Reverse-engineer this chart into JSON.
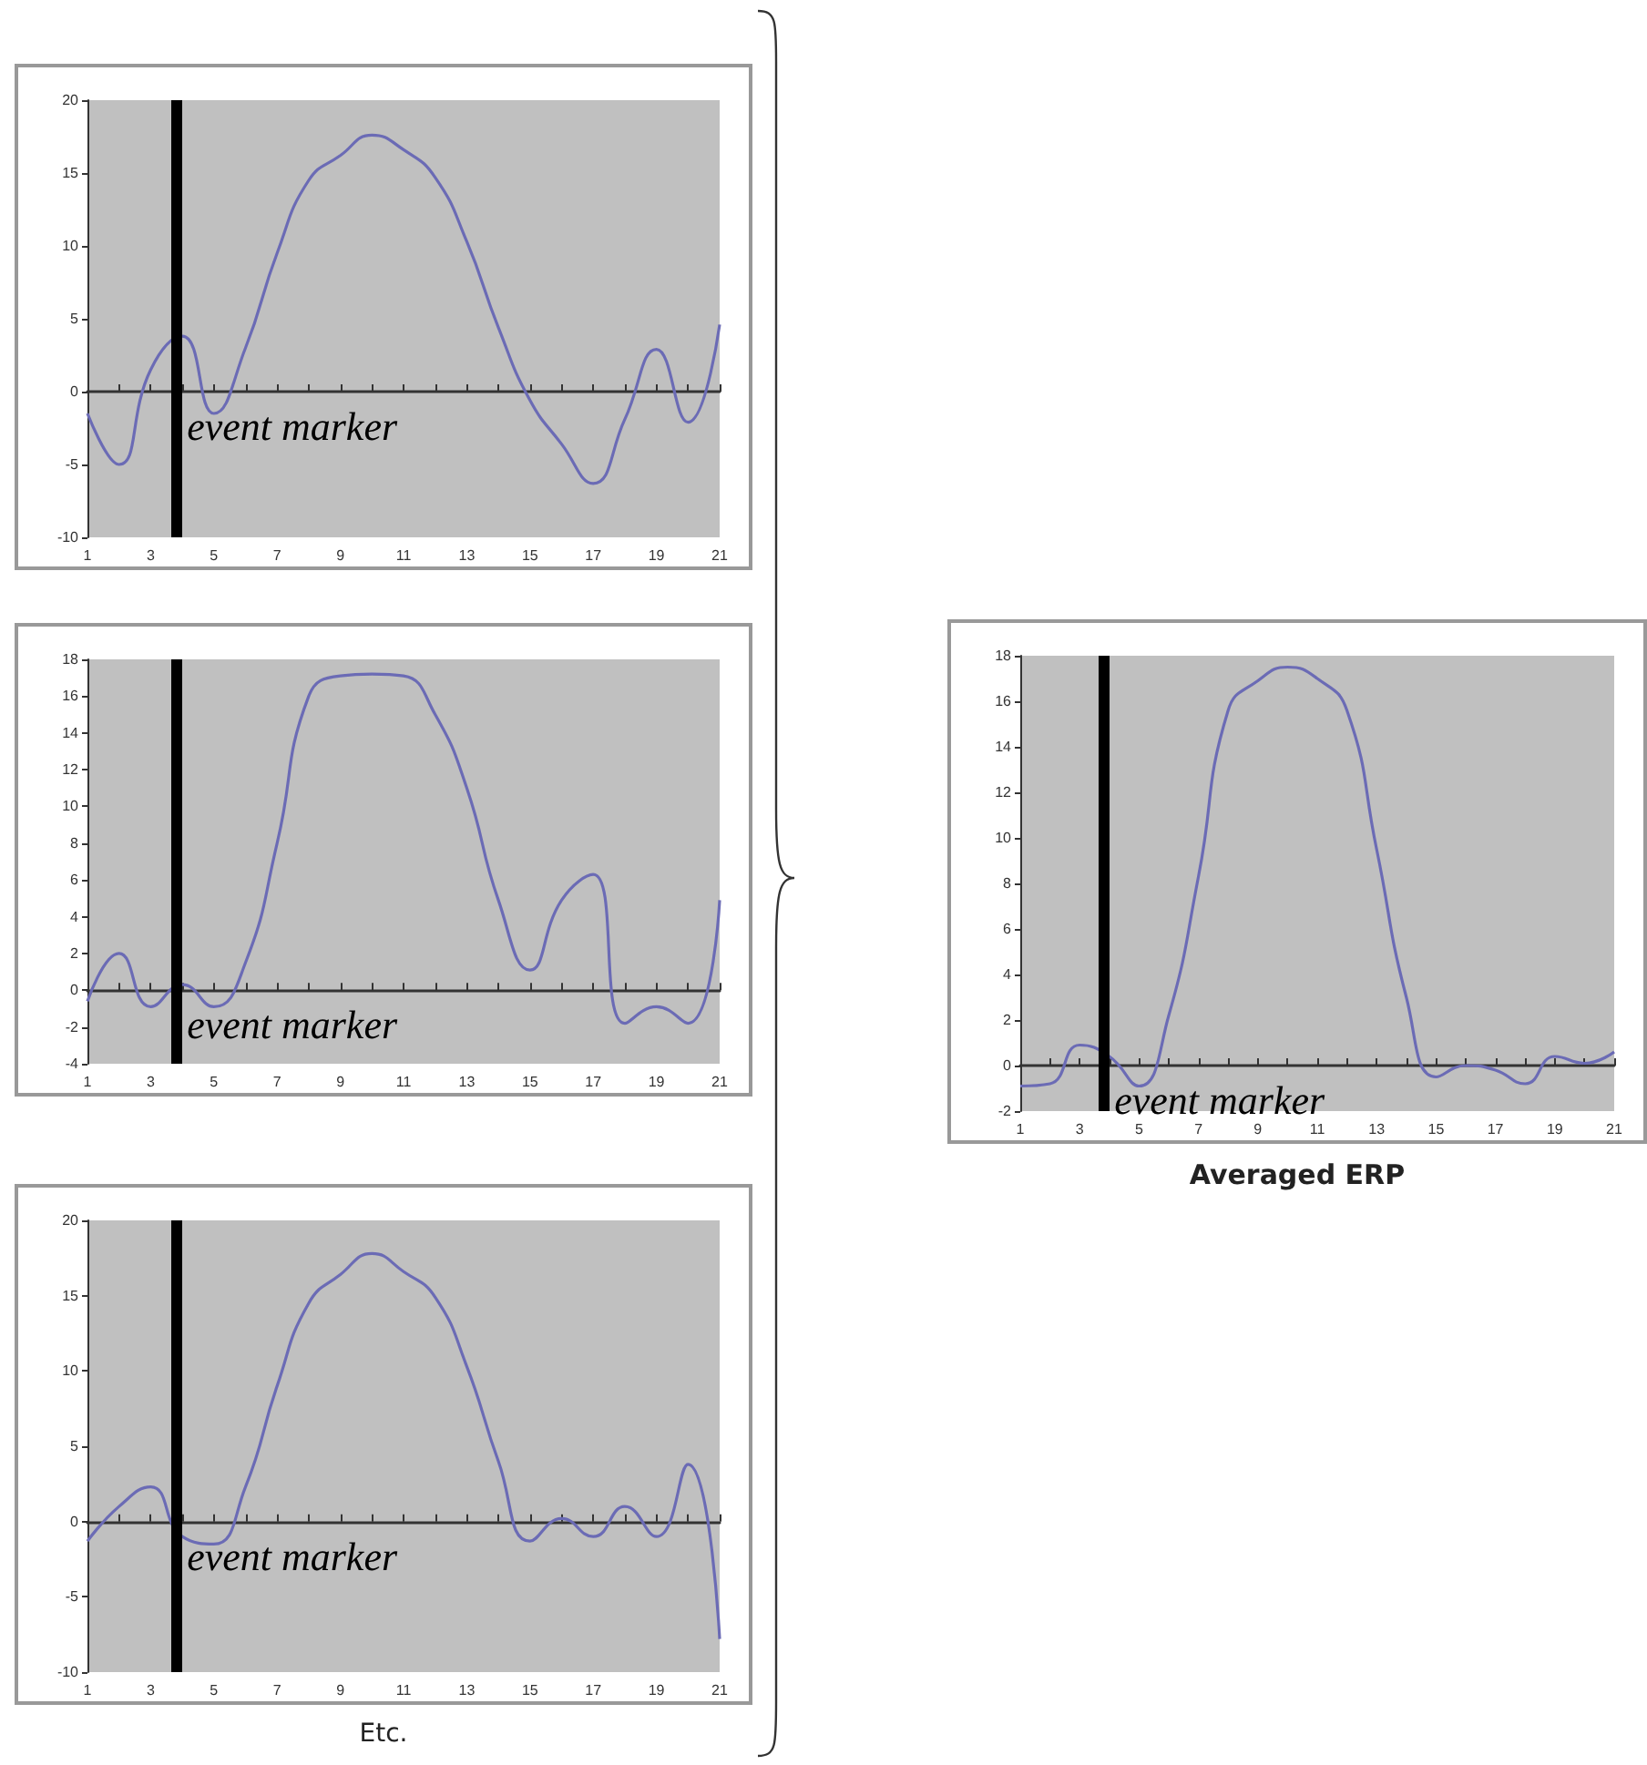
{
  "chart_data": [
    {
      "type": "line",
      "x": [
        1,
        2,
        3,
        4,
        5,
        6,
        7,
        8,
        9,
        10,
        11,
        12,
        13,
        14,
        15,
        16,
        17,
        18,
        19,
        20,
        21
      ],
      "values": [
        -1.5,
        -5,
        1.5,
        3.8,
        -1.5,
        3,
        9.5,
        14.5,
        16.2,
        17.6,
        16.6,
        14.7,
        10.3,
        4.4,
        -0.6,
        -3.6,
        -6.3,
        -1.9,
        2.9,
        -2.1,
        4.6
      ],
      "color": "#6b6bb5",
      "xlim": [
        1,
        21
      ],
      "xticks": [
        1,
        {
          "value": 2,
          "label": null
        },
        3,
        {
          "value": 4,
          "label": null
        },
        5,
        {
          "value": 6,
          "label": null
        },
        7,
        {
          "value": 8,
          "label": null
        },
        9,
        {
          "value": 10,
          "label": null
        },
        11,
        {
          "value": 12,
          "label": null
        },
        13,
        {
          "value": 14,
          "label": null
        },
        15,
        {
          "value": 16,
          "label": null
        },
        17,
        {
          "value": 18,
          "label": null
        },
        19,
        {
          "value": 20,
          "label": null
        },
        21
      ],
      "ylim": [
        -10,
        20
      ],
      "yticks": [
        -10,
        -5,
        0,
        5,
        10,
        15,
        20
      ],
      "ref_lines": [
        {
          "axis": "x",
          "value": 3.8,
          "label": "event marker",
          "color": "#000000"
        }
      ],
      "marker": "none"
    },
    {
      "type": "line",
      "x": [
        1,
        2,
        3,
        4,
        5,
        6,
        7,
        8,
        9,
        10,
        11,
        12,
        13,
        14,
        15,
        16,
        17,
        18,
        19,
        20,
        21
      ],
      "values": [
        -0.6,
        2,
        -0.9,
        0.3,
        -0.9,
        1.5,
        8,
        16,
        17.1,
        17.2,
        17.1,
        15,
        11,
        4.9,
        1.1,
        4.9,
        6.3,
        -1.8,
        -0.9,
        -1.8,
        4.9
      ],
      "color": "#6b6bb5",
      "xlim": [
        1,
        21
      ],
      "xticks": [
        1,
        {
          "value": 2,
          "label": null
        },
        3,
        {
          "value": 4,
          "label": null
        },
        5,
        {
          "value": 6,
          "label": null
        },
        7,
        {
          "value": 8,
          "label": null
        },
        9,
        {
          "value": 10,
          "label": null
        },
        11,
        {
          "value": 12,
          "label": null
        },
        13,
        {
          "value": 14,
          "label": null
        },
        15,
        {
          "value": 16,
          "label": null
        },
        17,
        {
          "value": 18,
          "label": null
        },
        19,
        {
          "value": 20,
          "label": null
        },
        21
      ],
      "ylim": [
        -4,
        18
      ],
      "yticks": [
        -4,
        -2,
        0,
        2,
        4,
        6,
        8,
        10,
        12,
        14,
        16,
        18
      ],
      "ref_lines": [
        {
          "axis": "x",
          "value": 3.8,
          "label": "event marker",
          "color": "#000000"
        }
      ],
      "marker": "none"
    },
    {
      "type": "line",
      "x": [
        1,
        2,
        3,
        4,
        5,
        6,
        7,
        8,
        9,
        10,
        11,
        12,
        13,
        14,
        15,
        16,
        17,
        18,
        19,
        20,
        21
      ],
      "values": [
        -1.3,
        1,
        2.3,
        -1,
        -1.5,
        2.3,
        9,
        14.5,
        16.4,
        17.8,
        16.6,
        14.9,
        10.3,
        4,
        -1.3,
        0.2,
        -1,
        1,
        -1,
        3.8,
        -7.8
      ],
      "color": "#6b6bb5",
      "xlim": [
        1,
        21
      ],
      "xticks": [
        1,
        {
          "value": 2,
          "label": null
        },
        3,
        {
          "value": 4,
          "label": null
        },
        5,
        {
          "value": 6,
          "label": null
        },
        7,
        {
          "value": 8,
          "label": null
        },
        9,
        {
          "value": 10,
          "label": null
        },
        11,
        {
          "value": 12,
          "label": null
        },
        13,
        {
          "value": 14,
          "label": null
        },
        15,
        {
          "value": 16,
          "label": null
        },
        17,
        {
          "value": 18,
          "label": null
        },
        19,
        {
          "value": 20,
          "label": null
        },
        21
      ],
      "ylim": [
        -10,
        20
      ],
      "yticks": [
        -10,
        -5,
        0,
        5,
        10,
        15,
        20
      ],
      "ref_lines": [
        {
          "axis": "x",
          "value": 3.8,
          "label": "event marker",
          "color": "#000000"
        }
      ],
      "marker": "none",
      "annotations": [
        "Etc."
      ]
    },
    {
      "type": "line",
      "title": "Averaged ERP",
      "x": [
        1,
        2,
        3,
        4,
        5,
        6,
        7,
        8,
        9,
        10,
        11,
        12,
        13,
        14,
        15,
        16,
        17,
        18,
        19,
        20,
        21
      ],
      "values": [
        -0.9,
        -0.8,
        0.9,
        0.4,
        -0.9,
        2.2,
        8.3,
        15.6,
        16.9,
        17.5,
        17,
        15.6,
        9.5,
        3,
        -0.5,
        0,
        -0.2,
        -0.8,
        0.4,
        0.1,
        0.6
      ],
      "color": "#6b6bb5",
      "xlim": [
        1,
        21
      ],
      "xticks": [
        1,
        {
          "value": 2,
          "label": null
        },
        3,
        {
          "value": 4,
          "label": null
        },
        5,
        {
          "value": 6,
          "label": null
        },
        7,
        {
          "value": 8,
          "label": null
        },
        9,
        {
          "value": 10,
          "label": null
        },
        11,
        {
          "value": 12,
          "label": null
        },
        13,
        {
          "value": 14,
          "label": null
        },
        15,
        {
          "value": 16,
          "label": null
        },
        17,
        {
          "value": 18,
          "label": null
        },
        19,
        {
          "value": 20,
          "label": null
        },
        21
      ],
      "ylim": [
        -2,
        18
      ],
      "yticks": [
        -2,
        0,
        2,
        4,
        6,
        8,
        10,
        12,
        14,
        16,
        18
      ],
      "ref_lines": [
        {
          "axis": "x",
          "value": 3.8,
          "label": "event marker",
          "color": "#000000"
        }
      ],
      "marker": "none"
    }
  ]
}
